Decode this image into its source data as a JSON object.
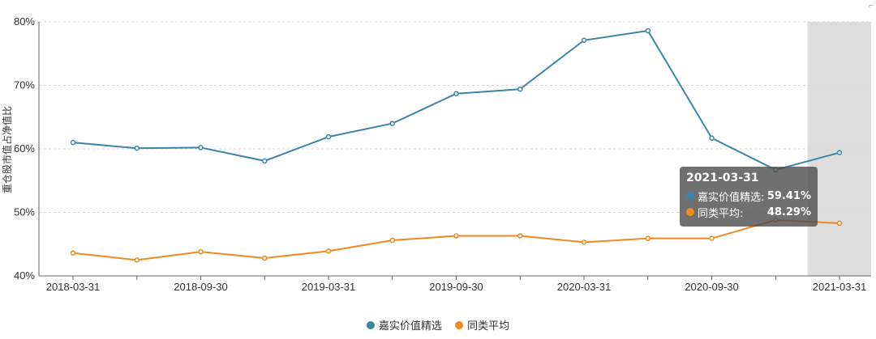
{
  "chart_data": {
    "type": "line",
    "ylabel": "重仓股市值占净值比",
    "ylim": [
      40,
      80
    ],
    "yticks": [
      "40%",
      "50%",
      "60%",
      "70%",
      "80%"
    ],
    "x": [
      "2018-03-31",
      "2018-06-30",
      "2018-09-30",
      "2018-12-31",
      "2019-03-31",
      "2019-06-30",
      "2019-09-30",
      "2019-12-31",
      "2020-03-31",
      "2020-06-30",
      "2020-09-30",
      "2020-12-31",
      "2021-03-31"
    ],
    "xtick_labels": [
      "2018-03-31",
      "2018-09-30",
      "2019-03-31",
      "2019-09-30",
      "2020-03-31",
      "2020-09-30",
      "2021-03-31"
    ],
    "series": [
      {
        "name": "嘉实价值精选",
        "color": "#3a85a8",
        "values": [
          61.0,
          60.1,
          60.2,
          58.1,
          61.9,
          64.0,
          68.7,
          69.4,
          77.1,
          78.6,
          61.7,
          56.7,
          59.41
        ]
      },
      {
        "name": "同类平均",
        "color": "#f0891e",
        "values": [
          43.6,
          42.5,
          43.8,
          42.8,
          43.9,
          45.6,
          46.3,
          46.3,
          45.3,
          45.9,
          45.9,
          48.8,
          48.29
        ]
      }
    ],
    "highlight_index": 12,
    "grid": true,
    "legend": "bottom-center"
  },
  "tooltip": {
    "title": "2021-03-31",
    "rows": [
      {
        "name": "嘉实价值精选:",
        "value": "59.41%",
        "color": "#3a85a8"
      },
      {
        "name": "同类平均:",
        "value": "48.29%",
        "color": "#f0891e"
      }
    ]
  },
  "legend": {
    "items": [
      {
        "label": "嘉实价值精选",
        "color": "#3a85a8"
      },
      {
        "label": "同类平均",
        "color": "#f0891e"
      }
    ]
  }
}
